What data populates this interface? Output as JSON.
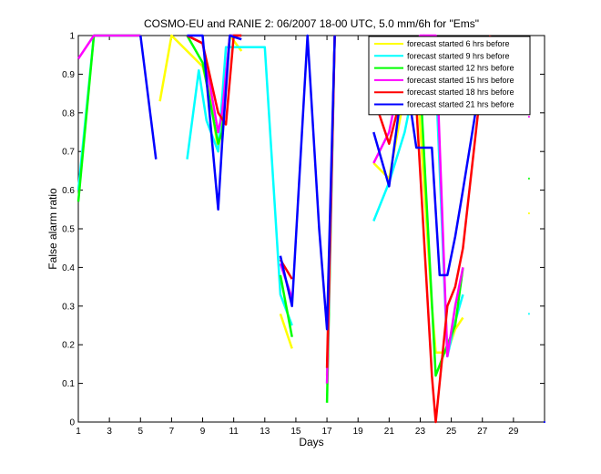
{
  "chart_data": {
    "type": "line",
    "title": "COSMO-EU and RANIE 2: 06/2007 18-00 UTC, 5.0 mm/6h for \"Ems\"",
    "xlabel": "Days",
    "ylabel": "False alarm ratio",
    "xlim": [
      1,
      31
    ],
    "ylim": [
      0,
      1
    ],
    "xticks": [
      1,
      3,
      5,
      7,
      9,
      11,
      13,
      15,
      17,
      19,
      21,
      23,
      25,
      27,
      29
    ],
    "yticks": [
      0,
      0.1,
      0.2,
      0.3,
      0.4,
      0.5,
      0.6,
      0.7,
      0.8,
      0.9,
      1
    ],
    "ytick_labels": [
      "0",
      "0.1",
      "0.2",
      "0.3",
      "0.4",
      "0.5",
      "0.6",
      "0.7",
      "0.8",
      "0.9",
      "1"
    ],
    "legend_position": "top-right",
    "series": [
      {
        "name": "forecast started 6 hrs before",
        "color": "#ffff00",
        "segments": [
          [
            [
              6.25,
              0.83
            ],
            [
              7.0,
              1.0
            ],
            [
              8.0,
              0.96
            ],
            [
              9.0,
              0.92
            ],
            [
              9.5,
              0.84
            ],
            [
              10.0,
              0.7
            ],
            [
              10.25,
              0.78
            ],
            [
              10.75,
              1.0
            ],
            [
              11.5,
              0.96
            ]
          ],
          [
            [
              14.0,
              0.28
            ],
            [
              14.75,
              0.19
            ]
          ],
          [
            [
              17.0,
              0.12
            ],
            [
              17.5,
              1.0
            ]
          ],
          [
            [
              20.0,
              0.67
            ],
            [
              21.0,
              0.63
            ],
            [
              22.0,
              0.85
            ],
            [
              22.75,
              0.92
            ],
            [
              23.75,
              0.3
            ],
            [
              24.0,
              0.18
            ],
            [
              24.75,
              0.18
            ],
            [
              25.25,
              0.24
            ],
            [
              25.75,
              0.27
            ]
          ]
        ],
        "isolated": [
          [
            30.0,
            0.54
          ]
        ]
      },
      {
        "name": "forecast started 9 hrs before",
        "color": "#00ffff",
        "segments": [
          [
            [
              1.0,
              0.6
            ],
            [
              2.0,
              1.0
            ],
            [
              5.0,
              1.0
            ]
          ],
          [
            [
              8.0,
              0.68
            ],
            [
              8.75,
              0.91
            ],
            [
              9.25,
              0.78
            ],
            [
              10.0,
              0.7
            ],
            [
              10.5,
              0.97
            ],
            [
              11.5,
              0.97
            ],
            [
              13.0,
              0.97
            ],
            [
              14.0,
              0.33
            ],
            [
              14.75,
              0.25
            ]
          ],
          [
            [
              17.0,
              0.1
            ],
            [
              17.5,
              1.0
            ]
          ],
          [
            [
              20.0,
              0.52
            ],
            [
              21.0,
              0.62
            ],
            [
              22.0,
              0.75
            ],
            [
              23.25,
              1.0
            ],
            [
              24.0,
              0.9
            ],
            [
              24.75,
              0.17
            ],
            [
              25.25,
              0.26
            ],
            [
              25.75,
              0.33
            ]
          ]
        ],
        "isolated": [
          [
            30.0,
            0.28
          ]
        ]
      },
      {
        "name": "forecast started 12 hrs before",
        "color": "#00ff00",
        "segments": [
          [
            [
              1.0,
              0.57
            ],
            [
              2.0,
              1.0
            ],
            [
              5.0,
              1.0
            ]
          ],
          [
            [
              8.0,
              1.0
            ],
            [
              9.0,
              0.93
            ],
            [
              10.0,
              0.72
            ],
            [
              10.25,
              0.75
            ],
            [
              10.75,
              1.0
            ],
            [
              11.5,
              1.0
            ]
          ],
          [
            [
              14.0,
              0.38
            ],
            [
              14.75,
              0.22
            ]
          ],
          [
            [
              17.0,
              0.05
            ],
            [
              17.5,
              1.0
            ]
          ],
          [
            [
              21.5,
              0.8
            ],
            [
              23.0,
              0.88
            ],
            [
              24.0,
              0.12
            ],
            [
              24.75,
              0.2
            ],
            [
              25.25,
              0.25
            ],
            [
              25.75,
              0.4
            ]
          ]
        ],
        "isolated": [
          [
            30.0,
            0.63
          ]
        ]
      },
      {
        "name": "forecast started 15 hrs before",
        "color": "#ff00ff",
        "segments": [
          [
            [
              1.0,
              0.94
            ],
            [
              2.0,
              1.0
            ],
            [
              5.0,
              1.0
            ]
          ],
          [
            [
              8.0,
              1.0
            ],
            [
              9.0,
              0.98
            ],
            [
              10.0,
              0.75
            ],
            [
              10.25,
              0.8
            ],
            [
              10.75,
              1.0
            ],
            [
              11.5,
              1.0
            ]
          ],
          [
            [
              14.0,
              0.41
            ],
            [
              14.75,
              0.32
            ]
          ],
          [
            [
              17.0,
              0.1
            ],
            [
              17.5,
              1.0
            ]
          ],
          [
            [
              20.0,
              0.67
            ],
            [
              21.0,
              0.75
            ],
            [
              22.0,
              0.95
            ],
            [
              23.0,
              1.0
            ],
            [
              24.0,
              1.0
            ],
            [
              24.75,
              0.17
            ],
            [
              25.25,
              0.3
            ],
            [
              25.75,
              0.4
            ]
          ]
        ],
        "isolated": [
          [
            30.0,
            0.79
          ]
        ]
      },
      {
        "name": "forecast started 18 hrs before",
        "color": "#ff0000",
        "segments": [
          [
            [
              8.0,
              1.0
            ],
            [
              9.0,
              0.98
            ],
            [
              10.0,
              0.8
            ],
            [
              10.5,
              0.77
            ],
            [
              11.0,
              1.0
            ],
            [
              11.5,
              1.0
            ]
          ],
          [
            [
              14.0,
              0.42
            ],
            [
              14.75,
              0.37
            ]
          ],
          [
            [
              17.0,
              0.14
            ],
            [
              17.5,
              1.0
            ]
          ],
          [
            [
              20.0,
              0.84
            ],
            [
              21.0,
              0.72
            ],
            [
              22.0,
              0.88
            ],
            [
              22.75,
              0.82
            ],
            [
              23.75,
              0.12
            ],
            [
              24.0,
              0.0
            ],
            [
              24.75,
              0.3
            ],
            [
              25.25,
              0.35
            ],
            [
              25.75,
              0.45
            ],
            [
              27.0,
              0.9
            ],
            [
              27.5,
              1.0
            ]
          ]
        ],
        "isolated": [
          [
            30.0,
            0.92
          ]
        ]
      },
      {
        "name": "forecast started 21 hrs before",
        "color": "#0000ff",
        "segments": [
          [
            [
              5.0,
              1.0
            ],
            [
              6.0,
              0.68
            ]
          ],
          [
            [
              8.0,
              1.0
            ],
            [
              9.0,
              1.0
            ],
            [
              10.0,
              0.55
            ],
            [
              10.25,
              0.72
            ],
            [
              10.75,
              1.0
            ],
            [
              11.5,
              0.99
            ]
          ],
          [
            [
              14.0,
              0.43
            ],
            [
              14.75,
              0.3
            ],
            [
              15.75,
              1.0
            ],
            [
              16.5,
              0.5
            ],
            [
              17.0,
              0.24
            ],
            [
              17.5,
              1.0
            ]
          ],
          [
            [
              20.0,
              0.75
            ],
            [
              21.0,
              0.61
            ],
            [
              22.0,
              0.92
            ],
            [
              22.75,
              0.71
            ],
            [
              23.75,
              0.71
            ],
            [
              24.25,
              0.38
            ],
            [
              24.75,
              0.38
            ],
            [
              25.25,
              0.48
            ],
            [
              25.75,
              0.6
            ],
            [
              26.75,
              0.85
            ]
          ]
        ],
        "isolated": [
          [
            30.0,
            0.9
          ],
          [
            31.0,
            0.0
          ]
        ]
      }
    ]
  }
}
